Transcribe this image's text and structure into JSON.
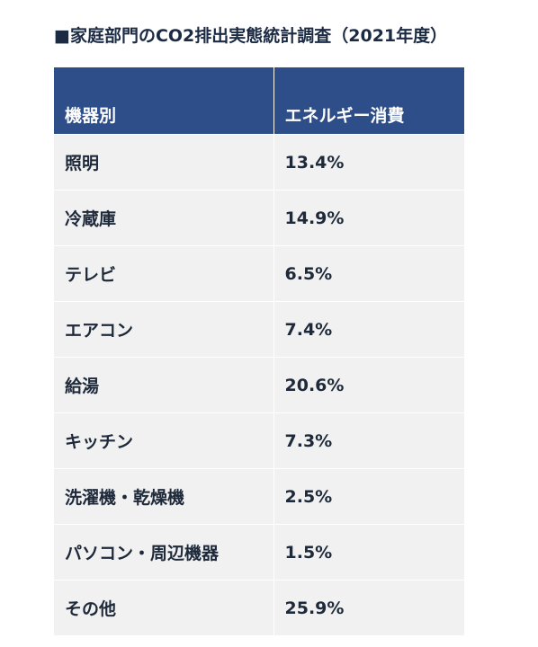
{
  "chart_data": {
    "type": "table",
    "title": "■家庭部門のCO2排出実態統計調査（2021年度）",
    "columns": [
      "機器別",
      "エネルギー消費"
    ],
    "rows": [
      {
        "category": "照明",
        "value": "13.4%"
      },
      {
        "category": "冷蔵庫",
        "value": "14.9%"
      },
      {
        "category": "テレビ",
        "value": "6.5%"
      },
      {
        "category": "エアコン",
        "value": "7.4%"
      },
      {
        "category": "給湯",
        "value": "20.6%"
      },
      {
        "category": "キッチン",
        "value": "7.3%"
      },
      {
        "category": "洗濯機・乾燥機",
        "value": "2.5%"
      },
      {
        "category": "パソコン・周辺機器",
        "value": "1.5%"
      },
      {
        "category": "その他",
        "value": "25.9%"
      }
    ],
    "header_color": "#2e4e8a",
    "row_color": "#f1f1f1"
  }
}
